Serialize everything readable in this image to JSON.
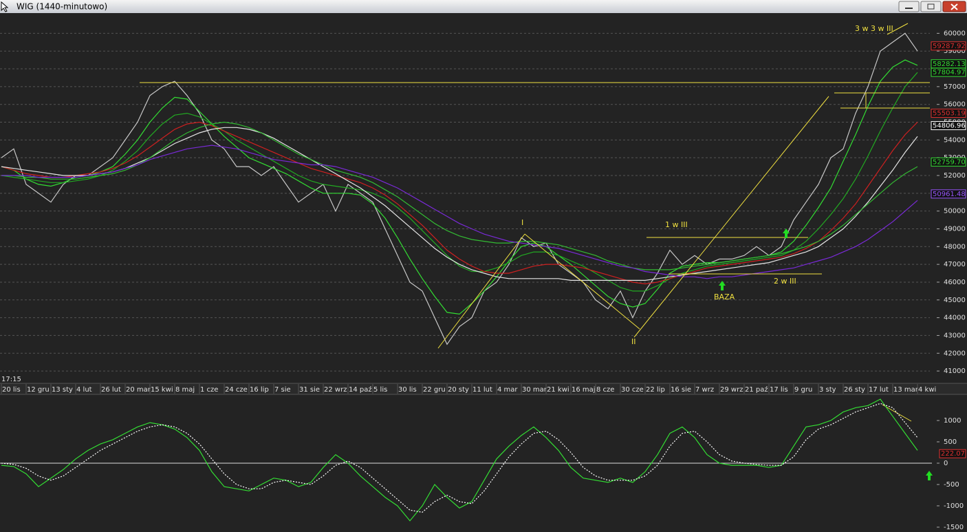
{
  "window": {
    "title": "WIG (1440-minutowo)"
  },
  "chart_data": [
    {
      "type": "line",
      "time_label": "17:15",
      "categories": [
        "20 lis",
        null,
        "12 gru",
        null,
        "13 sty",
        null,
        "4 lut",
        null,
        "26 lut",
        null,
        "20 mar",
        null,
        "15 kwi",
        null,
        "8 maj",
        null,
        "1 cze",
        null,
        "24 cze",
        null,
        "16 lip",
        null,
        "7 sie",
        null,
        "31 sie",
        null,
        "22 wrz",
        null,
        "14 paź",
        null,
        "5 lis",
        null,
        "30 lis",
        null,
        "22 gru",
        null,
        "20 sty",
        null,
        "11 lut",
        null,
        "4 mar",
        null,
        "30 mar",
        null,
        "21 kwi",
        null,
        "16 maj",
        null,
        "8 cze",
        null,
        "30 cze",
        null,
        "22 lip",
        null,
        "16 sie",
        null,
        "7 wrz",
        null,
        "29 wrz",
        null,
        "21 paź",
        null,
        "17 lis",
        null,
        "9 gru",
        null,
        "3 sty",
        null,
        "26 sty",
        null,
        "17 lut",
        null,
        "13 mar",
        null,
        "4 kwi"
      ],
      "series": [
        {
          "color": "#c8c8c8",
          "values": [
            53000,
            53500,
            51500,
            51000,
            50500,
            51500,
            52000,
            52000,
            52500,
            53000,
            54000,
            55000,
            56500,
            57000,
            57300,
            56500,
            55500,
            54000,
            53500,
            52500,
            52500,
            52000,
            52500,
            51500,
            50500,
            51000,
            51500,
            50000,
            51500,
            51000,
            50500,
            49000,
            47500,
            46000,
            45500,
            44000,
            42500,
            43500,
            44000,
            45500,
            46000,
            47000,
            48500,
            48000,
            48200,
            47000,
            46500,
            46000,
            45000,
            44500,
            45500,
            44000,
            45500,
            46500,
            47800,
            47000,
            47500,
            47000,
            47300,
            47300,
            47500,
            48000,
            47500,
            48000,
            49500,
            50500,
            51500,
            53000,
            53500,
            55500,
            57000,
            59000,
            59500,
            60000,
            59000
          ]
        },
        {
          "color": "#33dd33",
          "values": [
            52500,
            52300,
            51800,
            51500,
            51400,
            51600,
            51900,
            52000,
            52200,
            52500,
            53200,
            54000,
            55000,
            55800,
            56400,
            56300,
            55600,
            54900,
            54200,
            53600,
            53000,
            52700,
            52400,
            52100,
            51700,
            51300,
            51000,
            51000,
            51000,
            50900,
            50400,
            49600,
            48500,
            47300,
            46200,
            45200,
            44300,
            44200,
            44800,
            45500,
            46300,
            47200,
            48000,
            48200,
            48000,
            47500,
            47000,
            46400,
            45800,
            45200,
            44800,
            44600,
            44800,
            45600,
            46500,
            46900,
            47000,
            47100,
            47100,
            47200,
            47300,
            47400,
            47500,
            47700,
            48300,
            49200,
            50200,
            51300,
            52800,
            54300,
            55900,
            57300,
            58100,
            58500,
            58200
          ]
        },
        {
          "color": "#22aa22",
          "values": [
            52000,
            51900,
            51800,
            51700,
            51600,
            51600,
            51700,
            51800,
            52000,
            52300,
            52800,
            53400,
            54200,
            54900,
            55400,
            55500,
            55300,
            54900,
            54500,
            54000,
            53600,
            53200,
            52800,
            52400,
            52000,
            51700,
            51500,
            51400,
            51300,
            51200,
            51000,
            50700,
            50200,
            49600,
            48900,
            48200,
            47500,
            46900,
            46600,
            46600,
            46800,
            47100,
            47500,
            47700,
            47700,
            47500,
            47200,
            46900,
            46500,
            46100,
            45700,
            45500,
            45500,
            45800,
            46200,
            46500,
            46700,
            46900,
            47000,
            47100,
            47200,
            47300,
            47400,
            47500,
            47800,
            48300,
            49000,
            49800,
            50700,
            51800,
            53100,
            54500,
            55800,
            57000,
            57800
          ]
        },
        {
          "color": "#d02020",
          "values": [
            52500,
            52300,
            52100,
            52000,
            51900,
            51900,
            52000,
            52100,
            52200,
            52400,
            52700,
            53100,
            53600,
            54100,
            54600,
            54900,
            55000,
            54800,
            54500,
            54200,
            53900,
            53600,
            53300,
            53000,
            52700,
            52400,
            52200,
            52000,
            51800,
            51600,
            51300,
            50900,
            50400,
            49800,
            49200,
            48500,
            47800,
            47300,
            46900,
            46600,
            46500,
            46500,
            46700,
            46900,
            47000,
            47000,
            46900,
            46800,
            46600,
            46400,
            46200,
            46000,
            45900,
            46000,
            46200,
            46400,
            46600,
            46800,
            46900,
            47000,
            47100,
            47200,
            47300,
            47400,
            47600,
            47900,
            48300,
            48900,
            49600,
            50400,
            51400,
            52400,
            53400,
            54300,
            55000
          ]
        },
        {
          "color": "#e6e6e6",
          "values": [
            52500,
            52400,
            52300,
            52200,
            52100,
            52000,
            52000,
            52000,
            52100,
            52200,
            52400,
            52700,
            53000,
            53400,
            53800,
            54100,
            54400,
            54600,
            54700,
            54700,
            54600,
            54400,
            54100,
            53700,
            53300,
            52900,
            52500,
            52100,
            51700,
            51300,
            50800,
            50300,
            49700,
            49100,
            48500,
            47900,
            47400,
            47000,
            46700,
            46500,
            46300,
            46200,
            46200,
            46200,
            46200,
            46200,
            46100,
            46100,
            46100,
            46100,
            46100,
            46100,
            46100,
            46200,
            46300,
            46400,
            46500,
            46600,
            46700,
            46800,
            46900,
            47000,
            47100,
            47300,
            47500,
            47700,
            48000,
            48500,
            49000,
            49700,
            50500,
            51400,
            52300,
            53300,
            54200
          ]
        },
        {
          "color": "#33bb33",
          "values": [
            52000,
            52000,
            51900,
            51900,
            51800,
            51800,
            51800,
            51900,
            52000,
            52100,
            52300,
            52600,
            53000,
            53500,
            54000,
            54400,
            54700,
            54900,
            55000,
            54900,
            54700,
            54400,
            54000,
            53600,
            53200,
            52900,
            52600,
            52300,
            52100,
            51900,
            51600,
            51200,
            50800,
            50300,
            49800,
            49300,
            48900,
            48600,
            48400,
            48300,
            48200,
            48200,
            48300,
            48300,
            48200,
            48100,
            47900,
            47700,
            47500,
            47200,
            47000,
            46800,
            46700,
            46700,
            46700,
            46800,
            46900,
            47000,
            47100,
            47200,
            47300,
            47400,
            47500,
            47600,
            47800,
            48000,
            48300,
            48700,
            49200,
            49800,
            50400,
            51000,
            51600,
            52100,
            52500
          ]
        },
        {
          "color": "#7a2ad8",
          "values": [
            52000,
            52000,
            52000,
            51900,
            51900,
            51900,
            51900,
            52000,
            52100,
            52200,
            52400,
            52600,
            52900,
            53100,
            53300,
            53500,
            53600,
            53700,
            53600,
            53500,
            53300,
            53100,
            52900,
            52800,
            52700,
            52600,
            52600,
            52500,
            52300,
            52100,
            51900,
            51600,
            51300,
            50900,
            50500,
            50100,
            49700,
            49300,
            49000,
            48700,
            48500,
            48300,
            48200,
            48100,
            48000,
            47900,
            47700,
            47500,
            47300,
            47100,
            46900,
            46800,
            46600,
            46500,
            46400,
            46300,
            46300,
            46200,
            46300,
            46300,
            46400,
            46500,
            46600,
            46700,
            46800,
            47000,
            47200,
            47400,
            47700,
            48000,
            48400,
            48900,
            49400,
            50000,
            50600
          ]
        }
      ],
      "price_labels": [
        {
          "value": 59287.92,
          "label": "59287.92",
          "color": "#e03030"
        },
        {
          "value": 58282.13,
          "label": "58282.13",
          "color": "#33dd33"
        },
        {
          "value": 57804.97,
          "label": "57804.97",
          "color": "#33dd33"
        },
        {
          "value": 55503.19,
          "label": "55503.19",
          "color": "#e03030"
        },
        {
          "value": 54806.96,
          "label": "54806.96",
          "color": "#ffffff"
        },
        {
          "value": 52759.7,
          "label": "52759.70",
          "color": "#33dd33"
        },
        {
          "value": 50961.48,
          "label": "50961.48",
          "color": "#9955ff"
        }
      ],
      "annotations": [
        "3 w 3 w III",
        "I",
        "1 w III",
        "BAZA",
        "2 w III",
        "II"
      ],
      "ylim": [
        40500,
        61100
      ],
      "yticks": [
        41000,
        42000,
        43000,
        44000,
        45000,
        46000,
        47000,
        48000,
        49000,
        50000,
        51000,
        52000,
        53000,
        54000,
        55000,
        56000,
        57000,
        58000,
        59000,
        60000
      ],
      "grid": true
    },
    {
      "type": "line",
      "series": [
        {
          "color": "#33dd33",
          "values": [
            -50,
            -80,
            -250,
            -550,
            -350,
            -150,
            100,
            300,
            450,
            550,
            700,
            850,
            950,
            900,
            800,
            600,
            300,
            -200,
            -550,
            -600,
            -650,
            -500,
            -350,
            -400,
            -550,
            -450,
            -100,
            200,
            0,
            -300,
            -550,
            -800,
            -1000,
            -1350,
            -1000,
            -500,
            -800,
            -1050,
            -900,
            -400,
            100,
            400,
            650,
            850,
            600,
            300,
            -100,
            -350,
            -400,
            -450,
            -350,
            -450,
            -200,
            200,
            700,
            850,
            600,
            200,
            0,
            -50,
            -50,
            -50,
            -100,
            -50,
            400,
            850,
            900,
            1000,
            1200,
            1300,
            1350,
            1500,
            1100,
            700,
            300
          ]
        },
        {
          "color": "#ffffff",
          "dashed": true,
          "values": [
            0,
            -30,
            -120,
            -300,
            -400,
            -300,
            -100,
            100,
            300,
            450,
            600,
            750,
            850,
            900,
            850,
            700,
            450,
            100,
            -250,
            -500,
            -600,
            -600,
            -450,
            -400,
            -450,
            -500,
            -300,
            -50,
            50,
            -100,
            -350,
            -600,
            -850,
            -1100,
            -1150,
            -900,
            -750,
            -900,
            -950,
            -650,
            -250,
            150,
            450,
            700,
            750,
            550,
            250,
            -100,
            -300,
            -400,
            -400,
            -400,
            -300,
            -50,
            400,
            700,
            750,
            500,
            200,
            50,
            0,
            -30,
            -50,
            -50,
            150,
            550,
            800,
            900,
            1050,
            1200,
            1300,
            1400,
            1300,
            950,
            600
          ]
        }
      ],
      "value_label": {
        "value": 222.07,
        "label": "222.07",
        "color": "#e03030"
      },
      "ylim": [
        -1565,
        1500
      ],
      "yticks": [
        -1500,
        -1000,
        -500,
        0,
        500,
        1000
      ],
      "grid": false
    }
  ]
}
